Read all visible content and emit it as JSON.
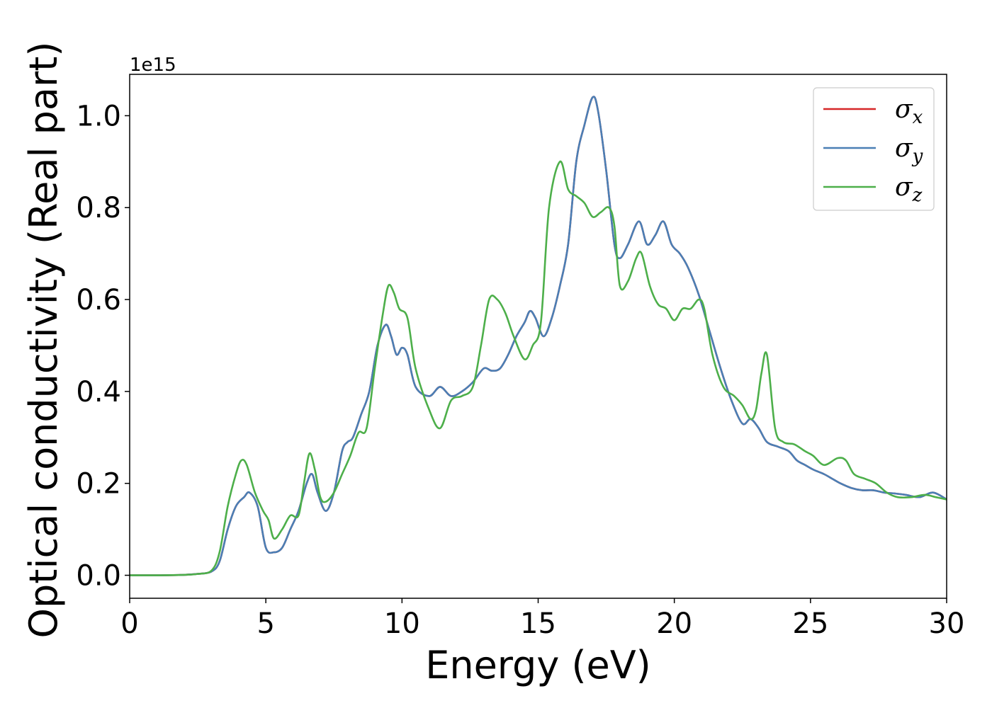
{
  "chart_data": {
    "type": "line",
    "title": "",
    "xlabel": "Energy (eV)",
    "ylabel": "Optical conductivity (Real part)",
    "y_offset_label": "1e15",
    "xlim": [
      0,
      30
    ],
    "ylim": [
      -0.05,
      1.09
    ],
    "x_ticks": [
      0,
      5,
      10,
      15,
      20,
      25,
      30
    ],
    "x_tick_labels": [
      "0",
      "5",
      "10",
      "15",
      "20",
      "25",
      "30"
    ],
    "y_ticks": [
      0.0,
      0.2,
      0.4,
      0.6,
      0.8,
      1.0
    ],
    "y_tick_labels": [
      "0.0",
      "0.2",
      "0.4",
      "0.6",
      "0.8",
      "1.0"
    ],
    "grid": false,
    "legend_position": "top-right",
    "series": [
      {
        "name": "σx",
        "name_base": "σ",
        "name_sub": "x",
        "color": "#d62728",
        "x": [
          0,
          1,
          2,
          2.5,
          3.0,
          3.3,
          3.6,
          3.9,
          4.2,
          4.4,
          4.7,
          5.0,
          5.3,
          5.6,
          5.9,
          6.2,
          6.5,
          6.7,
          6.9,
          7.2,
          7.5,
          7.8,
          8.0,
          8.2,
          8.5,
          8.8,
          9.1,
          9.4,
          9.6,
          9.8,
          10.0,
          10.2,
          10.5,
          11.0,
          11.4,
          11.8,
          12.2,
          12.6,
          13.0,
          13.3,
          13.6,
          13.9,
          14.2,
          14.5,
          14.7,
          14.9,
          15.2,
          15.5,
          15.8,
          16.1,
          16.4,
          16.7,
          17.0,
          17.2,
          17.5,
          17.8,
          18.0,
          18.3,
          18.7,
          19.0,
          19.3,
          19.6,
          19.9,
          20.2,
          20.5,
          20.9,
          21.3,
          21.7,
          22.1,
          22.5,
          22.8,
          23.1,
          23.4,
          23.8,
          24.2,
          24.5,
          24.8,
          25.1,
          25.5,
          25.8,
          26.1,
          26.5,
          26.9,
          27.3,
          27.7,
          28.1,
          28.5,
          29.0,
          29.5,
          30.0
        ],
        "values": [
          0.0,
          0.0,
          0.001,
          0.003,
          0.008,
          0.03,
          0.1,
          0.15,
          0.17,
          0.18,
          0.15,
          0.06,
          0.05,
          0.06,
          0.1,
          0.14,
          0.2,
          0.22,
          0.18,
          0.14,
          0.18,
          0.27,
          0.29,
          0.3,
          0.35,
          0.4,
          0.5,
          0.545,
          0.52,
          0.48,
          0.495,
          0.48,
          0.41,
          0.39,
          0.41,
          0.39,
          0.4,
          0.42,
          0.45,
          0.445,
          0.45,
          0.48,
          0.52,
          0.55,
          0.575,
          0.56,
          0.52,
          0.56,
          0.63,
          0.72,
          0.9,
          0.98,
          1.04,
          1.01,
          0.88,
          0.72,
          0.69,
          0.72,
          0.77,
          0.72,
          0.74,
          0.77,
          0.72,
          0.7,
          0.67,
          0.61,
          0.53,
          0.45,
          0.38,
          0.33,
          0.34,
          0.32,
          0.29,
          0.28,
          0.27,
          0.25,
          0.24,
          0.23,
          0.22,
          0.21,
          0.2,
          0.19,
          0.185,
          0.185,
          0.18,
          0.178,
          0.175,
          0.17,
          0.18,
          0.165
        ]
      },
      {
        "name": "σy",
        "name_base": "σ",
        "name_sub": "y",
        "color": "#4a7fb5",
        "x": [
          0,
          1,
          2,
          2.5,
          3.0,
          3.3,
          3.6,
          3.9,
          4.2,
          4.4,
          4.7,
          5.0,
          5.3,
          5.6,
          5.9,
          6.2,
          6.5,
          6.7,
          6.9,
          7.2,
          7.5,
          7.8,
          8.0,
          8.2,
          8.5,
          8.8,
          9.1,
          9.4,
          9.6,
          9.8,
          10.0,
          10.2,
          10.5,
          11.0,
          11.4,
          11.8,
          12.2,
          12.6,
          13.0,
          13.3,
          13.6,
          13.9,
          14.2,
          14.5,
          14.7,
          14.9,
          15.2,
          15.5,
          15.8,
          16.1,
          16.4,
          16.7,
          17.0,
          17.2,
          17.5,
          17.8,
          18.0,
          18.3,
          18.7,
          19.0,
          19.3,
          19.6,
          19.9,
          20.2,
          20.5,
          20.9,
          21.3,
          21.7,
          22.1,
          22.5,
          22.8,
          23.1,
          23.4,
          23.8,
          24.2,
          24.5,
          24.8,
          25.1,
          25.5,
          25.8,
          26.1,
          26.5,
          26.9,
          27.3,
          27.7,
          28.1,
          28.5,
          29.0,
          29.5,
          30.0
        ],
        "values": [
          0.0,
          0.0,
          0.001,
          0.003,
          0.008,
          0.03,
          0.1,
          0.15,
          0.17,
          0.18,
          0.15,
          0.06,
          0.05,
          0.06,
          0.1,
          0.14,
          0.2,
          0.22,
          0.18,
          0.14,
          0.18,
          0.27,
          0.29,
          0.3,
          0.35,
          0.4,
          0.5,
          0.545,
          0.52,
          0.48,
          0.495,
          0.48,
          0.41,
          0.39,
          0.41,
          0.39,
          0.4,
          0.42,
          0.45,
          0.445,
          0.45,
          0.48,
          0.52,
          0.55,
          0.575,
          0.56,
          0.52,
          0.56,
          0.63,
          0.72,
          0.9,
          0.98,
          1.04,
          1.01,
          0.88,
          0.72,
          0.69,
          0.72,
          0.77,
          0.72,
          0.74,
          0.77,
          0.72,
          0.7,
          0.67,
          0.61,
          0.53,
          0.45,
          0.38,
          0.33,
          0.34,
          0.32,
          0.29,
          0.28,
          0.27,
          0.25,
          0.24,
          0.23,
          0.22,
          0.21,
          0.2,
          0.19,
          0.185,
          0.185,
          0.18,
          0.178,
          0.175,
          0.17,
          0.18,
          0.165
        ]
      },
      {
        "name": "σz",
        "name_base": "σ",
        "name_sub": "z",
        "color": "#4daf4a",
        "x": [
          0,
          1,
          2,
          2.5,
          3.0,
          3.3,
          3.6,
          3.9,
          4.1,
          4.3,
          4.6,
          4.9,
          5.1,
          5.3,
          5.6,
          5.9,
          6.2,
          6.4,
          6.6,
          6.8,
          7.0,
          7.2,
          7.5,
          7.8,
          8.1,
          8.4,
          8.7,
          9.0,
          9.3,
          9.5,
          9.7,
          9.9,
          10.2,
          10.5,
          11.0,
          11.4,
          11.8,
          12.2,
          12.6,
          12.9,
          13.2,
          13.5,
          13.8,
          14.1,
          14.5,
          14.8,
          15.1,
          15.4,
          15.8,
          16.1,
          16.4,
          16.7,
          17.0,
          17.3,
          17.6,
          17.8,
          18.0,
          18.3,
          18.6,
          18.8,
          19.1,
          19.4,
          19.7,
          20.0,
          20.3,
          20.6,
          20.9,
          21.1,
          21.4,
          21.8,
          22.2,
          22.5,
          22.8,
          23.0,
          23.2,
          23.4,
          23.7,
          24.0,
          24.4,
          24.8,
          25.1,
          25.5,
          26.0,
          26.3,
          26.6,
          27.0,
          27.4,
          27.8,
          28.2,
          28.7,
          29.2,
          29.6,
          30.0
        ],
        "values": [
          0.0,
          0.0,
          0.001,
          0.003,
          0.01,
          0.05,
          0.15,
          0.22,
          0.25,
          0.24,
          0.18,
          0.14,
          0.12,
          0.08,
          0.1,
          0.13,
          0.13,
          0.2,
          0.265,
          0.23,
          0.17,
          0.16,
          0.18,
          0.22,
          0.26,
          0.31,
          0.32,
          0.45,
          0.57,
          0.63,
          0.615,
          0.58,
          0.56,
          0.45,
          0.36,
          0.32,
          0.38,
          0.39,
          0.41,
          0.5,
          0.6,
          0.6,
          0.57,
          0.52,
          0.47,
          0.5,
          0.55,
          0.8,
          0.9,
          0.84,
          0.825,
          0.81,
          0.78,
          0.79,
          0.8,
          0.76,
          0.63,
          0.64,
          0.69,
          0.7,
          0.63,
          0.59,
          0.58,
          0.555,
          0.58,
          0.58,
          0.6,
          0.58,
          0.48,
          0.41,
          0.39,
          0.37,
          0.34,
          0.36,
          0.44,
          0.48,
          0.32,
          0.29,
          0.285,
          0.27,
          0.26,
          0.24,
          0.255,
          0.25,
          0.22,
          0.21,
          0.2,
          0.18,
          0.17,
          0.17,
          0.175,
          0.17,
          0.165
        ]
      }
    ]
  }
}
